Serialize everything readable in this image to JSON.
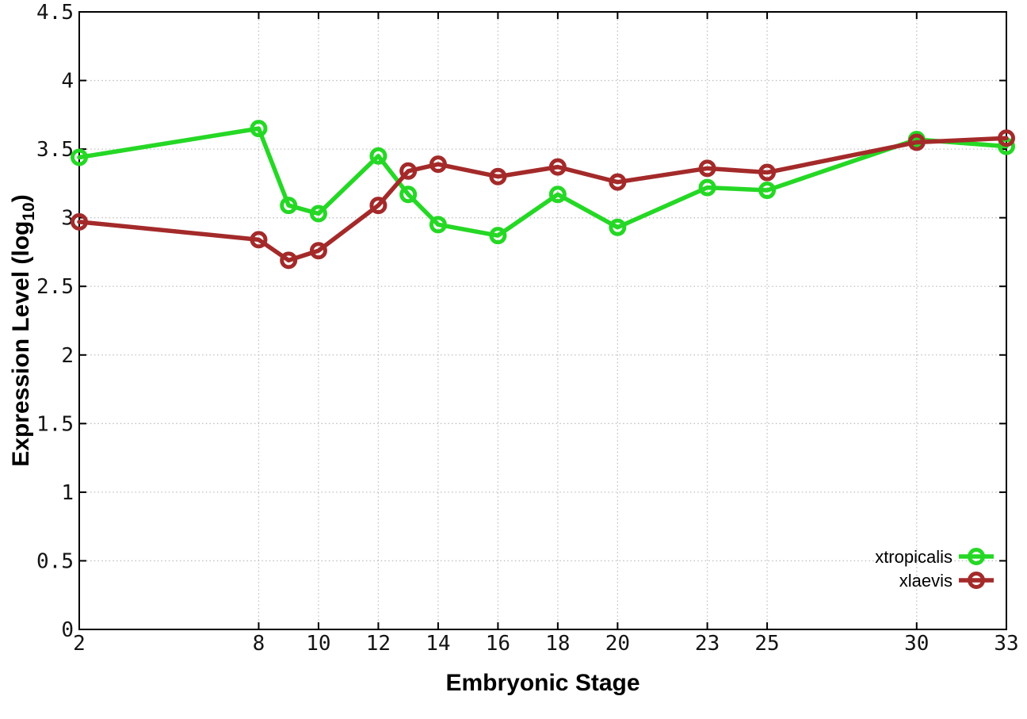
{
  "chart_data": {
    "type": "line",
    "title": "",
    "xlabel": "Embryonic Stage",
    "ylabel": "Expression Level (log10)",
    "ylabel_parts": {
      "main": "Expression Level (log",
      "sub": "10",
      "end": ")"
    },
    "x": [
      2,
      8,
      9,
      10,
      12,
      13,
      14,
      16,
      18,
      20,
      23,
      25,
      30,
      33
    ],
    "series": [
      {
        "name": "xtropicalis",
        "color": "#25d825",
        "values": [
          3.44,
          3.65,
          3.09,
          3.03,
          3.45,
          3.17,
          2.95,
          2.87,
          3.17,
          2.93,
          3.22,
          3.2,
          3.57,
          3.52
        ]
      },
      {
        "name": "xlaevis",
        "color": "#a42a2a",
        "values": [
          2.97,
          2.84,
          2.69,
          2.76,
          3.09,
          3.34,
          3.39,
          3.3,
          3.37,
          3.26,
          3.36,
          3.33,
          3.55,
          3.58
        ]
      }
    ],
    "xlim": [
      2,
      33
    ],
    "ylim": [
      0,
      4.5
    ],
    "x_ticks": [
      2,
      8,
      10,
      12,
      14,
      16,
      18,
      20,
      23,
      25,
      30,
      33
    ],
    "y_ticks": [
      0,
      0.5,
      1,
      1.5,
      2,
      2.5,
      3,
      3.5,
      4,
      4.5
    ],
    "y_tick_labels": [
      "0",
      "0.5",
      "1",
      "1.5",
      "2",
      "2.5",
      "3",
      "3.5",
      "4",
      "4.5"
    ],
    "grid": true,
    "legend_position": "bottom-right",
    "legend_entries": [
      "xtropicalis",
      "xlaevis"
    ]
  },
  "colors": {
    "background": "#ffffff",
    "axis": "#000000",
    "grid": "#c0c0c0",
    "tick_label": "#141414",
    "series_xtropicalis": "#25d825",
    "series_xlaevis": "#a42a2a"
  }
}
